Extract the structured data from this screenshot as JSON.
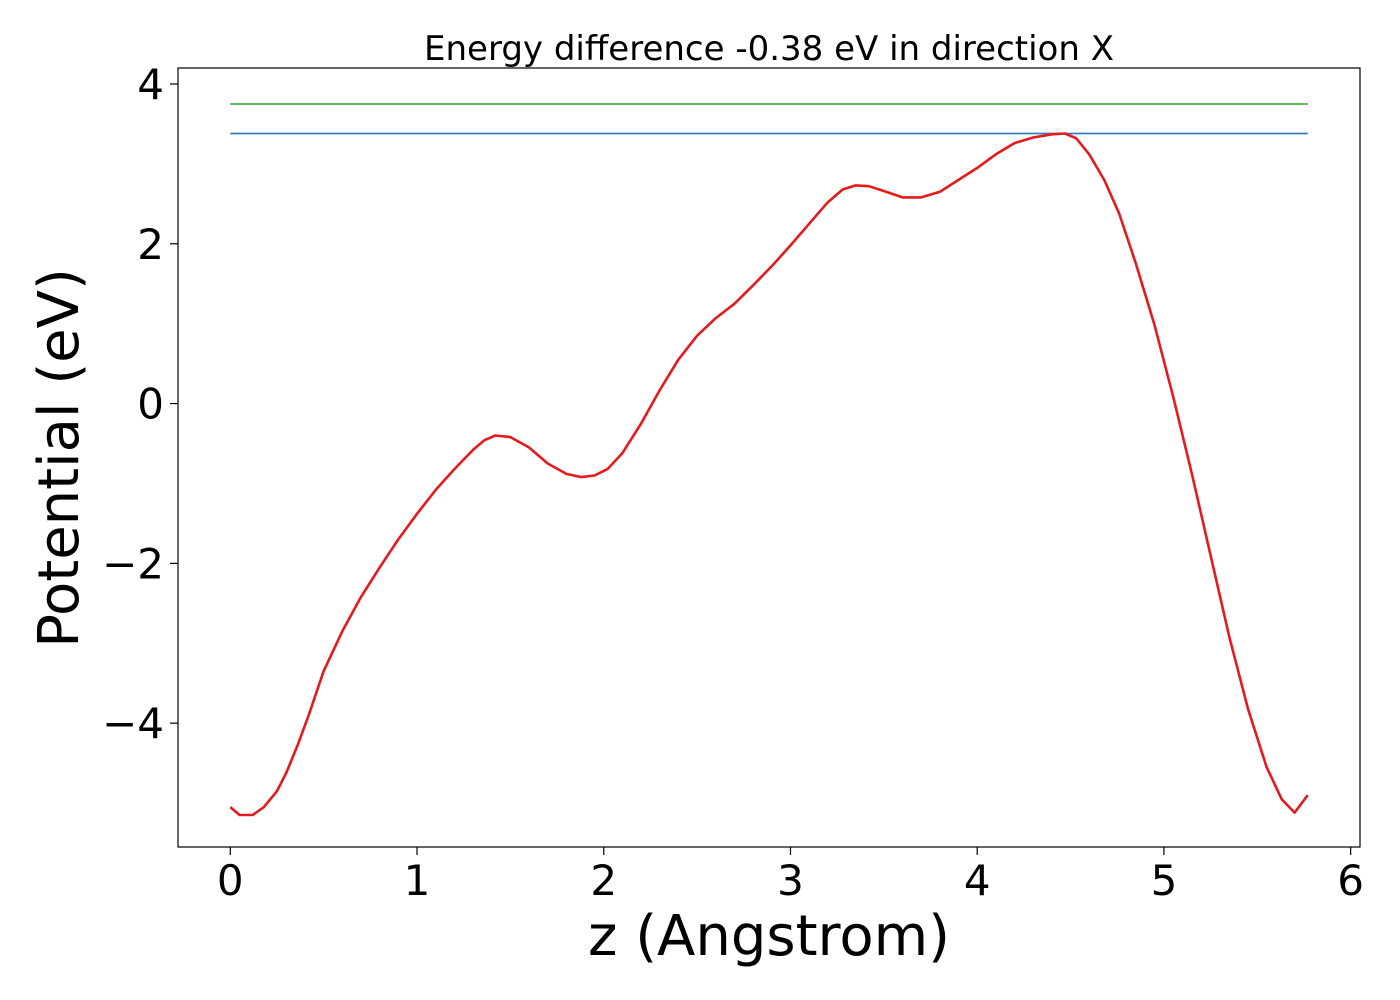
{
  "chart_data": {
    "type": "line",
    "title": "Energy difference -0.38 eV in direction X",
    "xlabel": "z (Angstrom)",
    "ylabel": "Potential (eV)",
    "xlim": [
      -0.28,
      6.05
    ],
    "ylim": [
      -5.55,
      4.2
    ],
    "xticks": [
      0,
      1,
      2,
      3,
      4,
      5,
      6
    ],
    "xtick_labels": [
      "0",
      "1",
      "2",
      "3",
      "4",
      "5",
      "6"
    ],
    "yticks": [
      -4,
      -2,
      0,
      2,
      4
    ],
    "ytick_labels": [
      "−4",
      "−2",
      "0",
      "2",
      "4"
    ],
    "grid": false,
    "series": [
      {
        "color": "#e41a1c",
        "x": [
          0.0,
          0.05,
          0.12,
          0.18,
          0.25,
          0.3,
          0.36,
          0.42,
          0.5,
          0.6,
          0.7,
          0.8,
          0.9,
          1.0,
          1.1,
          1.2,
          1.3,
          1.36,
          1.42,
          1.5,
          1.6,
          1.7,
          1.8,
          1.88,
          1.95,
          2.02,
          2.1,
          2.2,
          2.3,
          2.4,
          2.5,
          2.6,
          2.7,
          2.8,
          2.9,
          3.0,
          3.1,
          3.2,
          3.28,
          3.35,
          3.42,
          3.5,
          3.6,
          3.7,
          3.8,
          3.9,
          4.0,
          4.1,
          4.2,
          4.3,
          4.4,
          4.47,
          4.53,
          4.6,
          4.68,
          4.76,
          4.85,
          4.95,
          5.05,
          5.15,
          5.25,
          5.35,
          5.45,
          5.55,
          5.63,
          5.7,
          5.77
        ],
        "y": [
          -5.05,
          -5.15,
          -5.15,
          -5.05,
          -4.85,
          -4.62,
          -4.28,
          -3.9,
          -3.35,
          -2.85,
          -2.42,
          -2.05,
          -1.7,
          -1.38,
          -1.08,
          -0.82,
          -0.58,
          -0.46,
          -0.4,
          -0.42,
          -0.55,
          -0.75,
          -0.88,
          -0.92,
          -0.9,
          -0.82,
          -0.62,
          -0.25,
          0.17,
          0.55,
          0.85,
          1.07,
          1.25,
          1.48,
          1.72,
          1.98,
          2.25,
          2.52,
          2.68,
          2.73,
          2.72,
          2.66,
          2.58,
          2.58,
          2.65,
          2.8,
          2.95,
          3.12,
          3.26,
          3.33,
          3.37,
          3.38,
          3.32,
          3.12,
          2.8,
          2.38,
          1.75,
          0.98,
          0.08,
          -0.88,
          -1.9,
          -2.92,
          -3.82,
          -4.55,
          -4.95,
          -5.12,
          -4.9
        ]
      },
      {
        "color": "#4daf4a",
        "x": [
          0.0,
          5.77
        ],
        "y": [
          3.75,
          3.75
        ]
      },
      {
        "color": "#377eb8",
        "x": [
          0.0,
          5.77
        ],
        "y": [
          3.38,
          3.38
        ]
      }
    ]
  }
}
